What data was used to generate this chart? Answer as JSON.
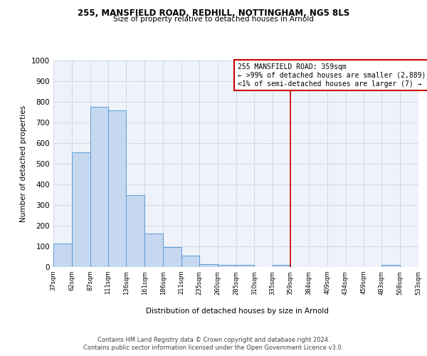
{
  "title1": "255, MANSFIELD ROAD, REDHILL, NOTTINGHAM, NG5 8LS",
  "title2": "Size of property relative to detached houses in Arnold",
  "xlabel": "Distribution of detached houses by size in Arnold",
  "ylabel": "Number of detached properties",
  "bin_edges": [
    37,
    62,
    87,
    111,
    136,
    161,
    186,
    211,
    235,
    260,
    285,
    310,
    335,
    359,
    384,
    409,
    434,
    459,
    483,
    508,
    533
  ],
  "bar_heights": [
    115,
    555,
    775,
    760,
    348,
    163,
    97,
    55,
    15,
    10,
    10,
    0,
    10,
    0,
    0,
    0,
    0,
    0,
    10,
    0
  ],
  "bar_color": "#c5d8f0",
  "bar_edgecolor": "#5b9bd5",
  "grid_color": "#d0d8e8",
  "background_color": "#eef2f9",
  "vline_x": 359,
  "vline_color": "#cc0000",
  "annotation_title": "255 MANSFIELD ROAD: 359sqm",
  "annotation_line1": "← >99% of detached houses are smaller (2,889)",
  "annotation_line2": "<1% of semi-detached houses are larger (7) →",
  "annotation_box_color": "#cc0000",
  "annotation_bg": "#ffffff",
  "ylim": [
    0,
    1000
  ],
  "yticks": [
    0,
    100,
    200,
    300,
    400,
    500,
    600,
    700,
    800,
    900,
    1000
  ],
  "footer1": "Contains HM Land Registry data © Crown copyright and database right 2024.",
  "footer2": "Contains public sector information licensed under the Open Government Licence v3.0."
}
